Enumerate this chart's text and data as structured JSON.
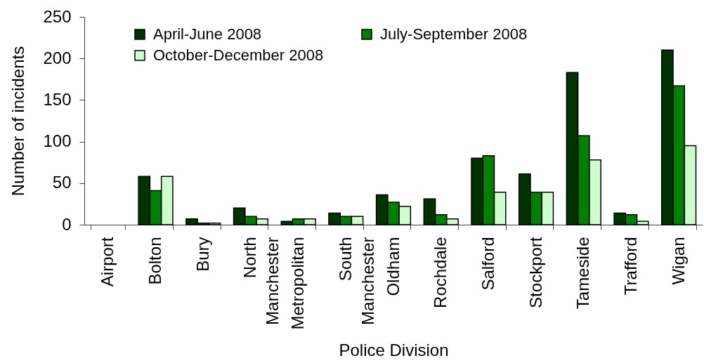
{
  "chart_data": {
    "type": "bar",
    "xlabel": "Police Division",
    "ylabel": "Number of incidents",
    "categories": [
      "Airport",
      "Bolton",
      "Bury",
      "North Manchester",
      "Metropolitan",
      "South Manchester",
      "Oldham",
      "Rochdale",
      "Salford",
      "Stockport",
      "Tameside",
      "Trafford",
      "Wigan"
    ],
    "series": [
      {
        "name": "April-June 2008",
        "color": "#003300",
        "values": [
          null,
          58,
          7,
          20,
          4,
          14,
          36,
          31,
          80,
          61,
          183,
          14,
          210
        ]
      },
      {
        "name": "July-September 2008",
        "color": "#008000",
        "values": [
          null,
          41,
          2,
          10,
          7,
          10,
          27,
          12,
          83,
          39,
          107,
          12,
          167
        ]
      },
      {
        "name": "October-December 2008",
        "color": "#ccffcc",
        "values": [
          null,
          58,
          2,
          7,
          7,
          10,
          22,
          7,
          39,
          39,
          78,
          4,
          95
        ]
      }
    ],
    "ylim": [
      0,
      250
    ],
    "yticks": [
      0,
      50,
      100,
      150,
      200,
      250
    ],
    "legend": "top left"
  }
}
